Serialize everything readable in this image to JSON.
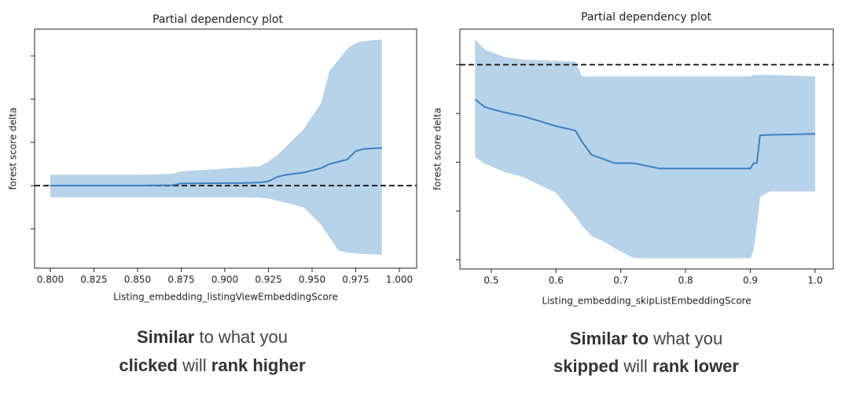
{
  "chart_data": [
    {
      "type": "line",
      "title": "Partial dependency plot",
      "xlabel": "Listing_embedding_listingViewEmbeddingScore",
      "ylabel": "forest score delta",
      "x": [
        0.8,
        0.85,
        0.87,
        0.875,
        0.91,
        0.92,
        0.925,
        0.93,
        0.935,
        0.945,
        0.955,
        0.96,
        0.965,
        0.97,
        0.975,
        0.98,
        0.99
      ],
      "series": [
        {
          "color": "#3a7fc1",
          "values": [
            0,
            0,
            0.01,
            0.05,
            0.06,
            0.07,
            0.1,
            0.2,
            0.25,
            0.3,
            0.4,
            0.5,
            0.55,
            0.6,
            0.8,
            0.85,
            0.87
          ]
        }
      ],
      "band": {
        "color": "#b7d3ea",
        "upper": [
          0.25,
          0.25,
          0.27,
          0.33,
          0.42,
          0.45,
          0.56,
          0.7,
          0.9,
          1.3,
          1.9,
          2.65,
          2.9,
          3.16,
          3.3,
          3.35,
          3.38
        ],
        "lower": [
          -0.27,
          -0.27,
          -0.27,
          -0.27,
          -0.27,
          -0.28,
          -0.3,
          -0.35,
          -0.4,
          -0.5,
          -0.9,
          -1.2,
          -1.5,
          -1.55,
          -1.57,
          -1.58,
          -1.6
        ]
      },
      "hline": 0,
      "xlim": [
        0.791,
        1.0099
      ],
      "ylim": [
        -1.91,
        3.62
      ],
      "xticks": [
        {
          "value": 0.8,
          "label": "0.800"
        },
        0.825,
        {
          "value": 0.85,
          "label": "0.850"
        },
        0.875,
        {
          "value": 0.9,
          "label": "0.900"
        },
        0.925,
        {
          "value": 0.95,
          "label": "0.950"
        },
        0.975,
        {
          "value": 1.0,
          "label": "1.000"
        }
      ],
      "yticks": [
        -1,
        0,
        1,
        2,
        3
      ],
      "ytick_labels_shown": false,
      "caption": [
        [
          {
            "text": "Similar",
            "bold": true
          },
          {
            "text": " to what you",
            "bold": false
          }
        ],
        [
          {
            "text": "clicked",
            "bold": true
          },
          {
            "text": " will ",
            "bold": false
          },
          {
            "text": "rank higher",
            "bold": true
          }
        ]
      ]
    },
    {
      "type": "line",
      "title": "Partial dependency plot",
      "xlabel": "Listing_embedding_skipListEmbeddingScore",
      "ylabel": "forest score delta",
      "x": [
        0.475,
        0.49,
        0.52,
        0.55,
        0.6,
        0.63,
        0.64,
        0.655,
        0.67,
        0.69,
        0.72,
        0.76,
        0.9,
        0.905,
        0.91,
        0.915,
        0.93,
        1.0
      ],
      "series": [
        {
          "color": "#3a7fc1",
          "values": [
            -0.71,
            -0.87,
            -0.98,
            -1.06,
            -1.26,
            -1.35,
            -1.58,
            -1.85,
            -1.92,
            -2.02,
            -2.02,
            -2.13,
            -2.13,
            -2.02,
            -2.02,
            -1.45,
            -1.44,
            -1.42
          ]
        }
      ],
      "band": {
        "color": "#b7d3ea",
        "upper": [
          0.52,
          0.31,
          0.16,
          0.1,
          0.08,
          0.06,
          -0.24,
          -0.24,
          -0.24,
          -0.24,
          -0.24,
          -0.24,
          -0.24,
          -0.21,
          -0.21,
          -0.21,
          -0.21,
          -0.24
        ],
        "lower": [
          -1.9,
          -2.03,
          -2.2,
          -2.31,
          -2.63,
          -3.11,
          -3.3,
          -3.52,
          -3.6,
          -3.76,
          -3.97,
          -3.97,
          -3.97,
          -3.81,
          -3.3,
          -2.71,
          -2.6,
          -2.6
        ]
      },
      "hline": 0,
      "xlim": [
        0.4515,
        1.028
      ],
      "ylim": [
        -4.19,
        0.73
      ],
      "xticks": [
        0.5,
        0.6,
        0.7,
        0.8,
        0.9,
        {
          "value": 1.0,
          "label": "1.0"
        }
      ],
      "yticks": [
        -4,
        -3,
        -2,
        -1,
        0
      ],
      "ytick_labels_shown": false,
      "caption": [
        [
          {
            "text": "Similar to",
            "bold": true
          },
          {
            "text": " what you",
            "bold": false
          }
        ],
        [
          {
            "text": "skipped",
            "bold": true
          },
          {
            "text": " will ",
            "bold": false
          },
          {
            "text": "rank lower",
            "bold": true
          }
        ]
      ]
    }
  ]
}
